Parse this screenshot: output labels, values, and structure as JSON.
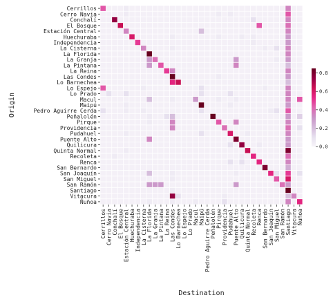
{
  "chart_data": {
    "type": "heatmap",
    "xlabel": "Destination",
    "ylabel": "Origin",
    "categories": [
      "Cerrillos",
      "Cerro Navia",
      "Conchalí",
      "El Bosque",
      "Estación Central",
      "Huechuraba",
      "Independencia",
      "La Cisterna",
      "La Florida",
      "La Granja",
      "La Pintana",
      "La Reina",
      "Las Condes",
      "Lo Barnechea",
      "Lo Espejo",
      "Lo Prado",
      "Macul",
      "Maipú",
      "Pedro Aguirre Cerda",
      "Peñalolén",
      "Pirque",
      "Providencia",
      "Pudahuel",
      "Puente Alto",
      "Quilicura",
      "Quinta Normal",
      "Recoleta",
      "Renca",
      "San Bernardo",
      "San Joaquín",
      "San Miguel",
      "San Ramón",
      "Santiago",
      "Vitacura",
      "Ñuñoa"
    ],
    "colorbar": {
      "ticks": [
        0.0,
        0.2,
        0.4,
        0.6,
        0.8
      ],
      "tick_labels": [
        "0.0",
        "0.2",
        "0.4",
        "0.6",
        "0.8"
      ],
      "range": [
        0,
        0.85
      ]
    },
    "colors": {
      "low": "#f7f4f9",
      "mid": "#df65b0",
      "high": "#67001f"
    },
    "matrix": [
      [
        0.45,
        0.02,
        0.02,
        0.02,
        0.05,
        0.02,
        0.02,
        0.02,
        0.02,
        0.02,
        0.02,
        0.02,
        0.02,
        0.02,
        0.02,
        0.02,
        0.02,
        0.02,
        0.02,
        0.02,
        0.02,
        0.02,
        0.02,
        0.02,
        0.02,
        0.02,
        0.02,
        0.02,
        0.02,
        0.02,
        0.02,
        0.02,
        0.35,
        0.02,
        0.02
      ],
      [
        0.02,
        0.02,
        0.02,
        0.02,
        0.05,
        0.02,
        0.02,
        0.02,
        0.02,
        0.02,
        0.02,
        0.02,
        0.02,
        0.02,
        0.02,
        0.02,
        0.02,
        0.02,
        0.02,
        0.02,
        0.05,
        0.02,
        0.05,
        0.02,
        0.02,
        0.02,
        0.02,
        0.02,
        0.02,
        0.02,
        0.02,
        0.02,
        0.45,
        0.02,
        0.02
      ],
      [
        0.02,
        0.02,
        0.75,
        0.02,
        0.02,
        0.02,
        0.02,
        0.02,
        0.02,
        0.02,
        0.02,
        0.02,
        0.02,
        0.02,
        0.02,
        0.02,
        0.02,
        0.02,
        0.02,
        0.02,
        0.02,
        0.02,
        0.02,
        0.02,
        0.02,
        0.02,
        0.1,
        0.02,
        0.02,
        0.02,
        0.02,
        0.02,
        0.35,
        0.02,
        0.02
      ],
      [
        0.02,
        0.02,
        0.02,
        0.65,
        0.02,
        0.02,
        0.02,
        0.02,
        0.02,
        0.02,
        0.02,
        0.02,
        0.02,
        0.02,
        0.02,
        0.02,
        0.02,
        0.02,
        0.02,
        0.02,
        0.02,
        0.02,
        0.02,
        0.02,
        0.02,
        0.02,
        0.02,
        0.45,
        0.02,
        0.02,
        0.02,
        0.02,
        0.4,
        0.02,
        0.02
      ],
      [
        0.02,
        0.02,
        0.02,
        0.02,
        0.35,
        0.02,
        0.02,
        0.02,
        0.02,
        0.02,
        0.02,
        0.02,
        0.02,
        0.02,
        0.02,
        0.02,
        0.02,
        0.2,
        0.02,
        0.02,
        0.02,
        0.02,
        0.02,
        0.02,
        0.02,
        0.02,
        0.02,
        0.02,
        0.02,
        0.02,
        0.02,
        0.02,
        0.35,
        0.02,
        0.02
      ],
      [
        0.02,
        0.02,
        0.02,
        0.02,
        0.02,
        0.6,
        0.02,
        0.02,
        0.02,
        0.02,
        0.02,
        0.02,
        0.05,
        0.02,
        0.02,
        0.02,
        0.02,
        0.02,
        0.02,
        0.02,
        0.05,
        0.02,
        0.02,
        0.02,
        0.05,
        0.02,
        0.05,
        0.02,
        0.02,
        0.02,
        0.02,
        0.02,
        0.3,
        0.02,
        0.02
      ],
      [
        0.02,
        0.02,
        0.02,
        0.02,
        0.02,
        0.02,
        0.5,
        0.02,
        0.02,
        0.02,
        0.02,
        0.02,
        0.02,
        0.02,
        0.02,
        0.02,
        0.02,
        0.02,
        0.02,
        0.02,
        0.02,
        0.02,
        0.02,
        0.02,
        0.02,
        0.02,
        0.05,
        0.02,
        0.02,
        0.02,
        0.02,
        0.02,
        0.3,
        0.02,
        0.02
      ],
      [
        0.02,
        0.02,
        0.02,
        0.02,
        0.02,
        0.02,
        0.02,
        0.35,
        0.02,
        0.02,
        0.02,
        0.02,
        0.05,
        0.02,
        0.02,
        0.02,
        0.02,
        0.02,
        0.02,
        0.02,
        0.02,
        0.02,
        0.02,
        0.02,
        0.02,
        0.02,
        0.02,
        0.02,
        0.05,
        0.02,
        0.1,
        0.02,
        0.35,
        0.02,
        0.02
      ],
      [
        0.02,
        0.02,
        0.02,
        0.02,
        0.02,
        0.02,
        0.02,
        0.02,
        0.85,
        0.02,
        0.02,
        0.02,
        0.02,
        0.02,
        0.02,
        0.02,
        0.02,
        0.02,
        0.02,
        0.02,
        0.02,
        0.02,
        0.02,
        0.02,
        0.02,
        0.02,
        0.02,
        0.02,
        0.02,
        0.02,
        0.02,
        0.02,
        0.35,
        0.02,
        0.02
      ],
      [
        0.02,
        0.02,
        0.02,
        0.02,
        0.02,
        0.02,
        0.02,
        0.02,
        0.3,
        0.4,
        0.02,
        0.02,
        0.02,
        0.02,
        0.02,
        0.02,
        0.02,
        0.02,
        0.02,
        0.02,
        0.02,
        0.02,
        0.02,
        0.3,
        0.02,
        0.02,
        0.02,
        0.02,
        0.02,
        0.02,
        0.05,
        0.02,
        0.3,
        0.02,
        0.02
      ],
      [
        0.02,
        0.02,
        0.02,
        0.02,
        0.02,
        0.02,
        0.02,
        0.02,
        0.3,
        0.02,
        0.45,
        0.02,
        0.02,
        0.02,
        0.02,
        0.02,
        0.02,
        0.02,
        0.02,
        0.02,
        0.02,
        0.02,
        0.02,
        0.35,
        0.02,
        0.02,
        0.02,
        0.02,
        0.02,
        0.02,
        0.02,
        0.02,
        0.2,
        0.02,
        0.02
      ],
      [
        0.02,
        0.02,
        0.02,
        0.02,
        0.02,
        0.02,
        0.02,
        0.02,
        0.02,
        0.02,
        0.02,
        0.5,
        0.35,
        0.02,
        0.02,
        0.02,
        0.02,
        0.02,
        0.02,
        0.02,
        0.02,
        0.02,
        0.02,
        0.02,
        0.02,
        0.02,
        0.02,
        0.02,
        0.02,
        0.02,
        0.02,
        0.02,
        0.35,
        0.02,
        0.02
      ],
      [
        0.02,
        0.02,
        0.02,
        0.02,
        0.02,
        0.02,
        0.02,
        0.02,
        0.02,
        0.02,
        0.02,
        0.02,
        0.85,
        0.02,
        0.02,
        0.02,
        0.02,
        0.02,
        0.02,
        0.02,
        0.05,
        0.02,
        0.02,
        0.02,
        0.02,
        0.02,
        0.02,
        0.02,
        0.02,
        0.02,
        0.02,
        0.02,
        0.3,
        0.02,
        0.02
      ],
      [
        0.02,
        0.02,
        0.02,
        0.02,
        0.02,
        0.02,
        0.02,
        0.02,
        0.02,
        0.02,
        0.02,
        0.02,
        0.55,
        0.65,
        0.02,
        0.02,
        0.02,
        0.02,
        0.02,
        0.02,
        0.02,
        0.02,
        0.02,
        0.02,
        0.02,
        0.02,
        0.02,
        0.02,
        0.02,
        0.02,
        0.02,
        0.02,
        0.2,
        0.02,
        0.02
      ],
      [
        0.45,
        0.02,
        0.02,
        0.02,
        0.02,
        0.02,
        0.02,
        0.05,
        0.02,
        0.02,
        0.02,
        0.02,
        0.02,
        0.02,
        0.02,
        0.02,
        0.02,
        0.1,
        0.02,
        0.02,
        0.02,
        0.02,
        0.02,
        0.02,
        0.02,
        0.02,
        0.02,
        0.02,
        0.05,
        0.02,
        0.02,
        0.02,
        0.35,
        0.02,
        0.02
      ],
      [
        0.02,
        0.1,
        0.02,
        0.02,
        0.1,
        0.02,
        0.02,
        0.02,
        0.02,
        0.02,
        0.02,
        0.02,
        0.02,
        0.02,
        0.02,
        0.02,
        0.02,
        0.1,
        0.02,
        0.02,
        0.02,
        0.02,
        0.1,
        0.02,
        0.02,
        0.02,
        0.02,
        0.02,
        0.02,
        0.02,
        0.02,
        0.02,
        0.35,
        0.02,
        0.02
      ],
      [
        0.02,
        0.02,
        0.02,
        0.02,
        0.02,
        0.02,
        0.02,
        0.02,
        0.2,
        0.02,
        0.02,
        0.02,
        0.05,
        0.02,
        0.02,
        0.02,
        0.3,
        0.02,
        0.02,
        0.02,
        0.05,
        0.02,
        0.02,
        0.05,
        0.02,
        0.02,
        0.02,
        0.02,
        0.02,
        0.02,
        0.02,
        0.02,
        0.35,
        0.02,
        0.45
      ],
      [
        0.02,
        0.02,
        0.02,
        0.02,
        0.05,
        0.02,
        0.02,
        0.02,
        0.02,
        0.02,
        0.02,
        0.02,
        0.02,
        0.02,
        0.02,
        0.02,
        0.02,
        0.85,
        0.02,
        0.02,
        0.02,
        0.02,
        0.05,
        0.02,
        0.02,
        0.02,
        0.02,
        0.02,
        0.02,
        0.02,
        0.02,
        0.02,
        0.3,
        0.02,
        0.02
      ],
      [
        0.1,
        0.02,
        0.02,
        0.02,
        0.05,
        0.02,
        0.02,
        0.05,
        0.02,
        0.02,
        0.02,
        0.02,
        0.02,
        0.02,
        0.02,
        0.02,
        0.02,
        0.1,
        0.02,
        0.02,
        0.02,
        0.02,
        0.02,
        0.02,
        0.02,
        0.02,
        0.02,
        0.02,
        0.02,
        0.05,
        0.1,
        0.02,
        0.45,
        0.02,
        0.02
      ],
      [
        0.02,
        0.02,
        0.02,
        0.02,
        0.02,
        0.02,
        0.02,
        0.02,
        0.05,
        0.02,
        0.02,
        0.1,
        0.2,
        0.02,
        0.02,
        0.02,
        0.02,
        0.02,
        0.02,
        0.85,
        0.02,
        0.02,
        0.02,
        0.02,
        0.02,
        0.02,
        0.02,
        0.02,
        0.02,
        0.02,
        0.02,
        0.02,
        0.3,
        0.02,
        0.15
      ],
      [
        0.02,
        0.02,
        0.02,
        0.02,
        0.02,
        0.02,
        0.02,
        0.02,
        0.05,
        0.02,
        0.02,
        0.02,
        0.35,
        0.02,
        0.02,
        0.02,
        0.02,
        0.02,
        0.02,
        0.02,
        0.45,
        0.02,
        0.02,
        0.35,
        0.02,
        0.02,
        0.02,
        0.02,
        0.02,
        0.02,
        0.02,
        0.02,
        0.35,
        0.02,
        0.02
      ],
      [
        0.02,
        0.02,
        0.02,
        0.02,
        0.02,
        0.02,
        0.02,
        0.02,
        0.02,
        0.02,
        0.02,
        0.02,
        0.35,
        0.02,
        0.02,
        0.02,
        0.02,
        0.02,
        0.02,
        0.02,
        0.02,
        0.4,
        0.02,
        0.02,
        0.02,
        0.02,
        0.02,
        0.02,
        0.02,
        0.02,
        0.02,
        0.02,
        0.4,
        0.02,
        0.1
      ],
      [
        0.02,
        0.02,
        0.02,
        0.02,
        0.05,
        0.02,
        0.02,
        0.02,
        0.02,
        0.02,
        0.02,
        0.02,
        0.02,
        0.02,
        0.02,
        0.02,
        0.02,
        0.1,
        0.02,
        0.02,
        0.02,
        0.02,
        0.6,
        0.02,
        0.02,
        0.05,
        0.02,
        0.02,
        0.02,
        0.02,
        0.02,
        0.02,
        0.35,
        0.02,
        0.02
      ],
      [
        0.02,
        0.02,
        0.02,
        0.02,
        0.02,
        0.02,
        0.02,
        0.02,
        0.35,
        0.02,
        0.02,
        0.02,
        0.02,
        0.02,
        0.02,
        0.02,
        0.02,
        0.02,
        0.02,
        0.02,
        0.02,
        0.02,
        0.02,
        0.8,
        0.02,
        0.02,
        0.02,
        0.02,
        0.02,
        0.02,
        0.02,
        0.02,
        0.3,
        0.02,
        0.02
      ],
      [
        0.02,
        0.02,
        0.02,
        0.02,
        0.02,
        0.02,
        0.02,
        0.02,
        0.02,
        0.02,
        0.02,
        0.02,
        0.02,
        0.02,
        0.02,
        0.02,
        0.02,
        0.02,
        0.02,
        0.02,
        0.02,
        0.02,
        0.1,
        0.02,
        0.75,
        0.02,
        0.02,
        0.05,
        0.02,
        0.02,
        0.02,
        0.02,
        0.3,
        0.02,
        0.02
      ],
      [
        0.02,
        0.02,
        0.02,
        0.02,
        0.05,
        0.02,
        0.02,
        0.02,
        0.02,
        0.02,
        0.02,
        0.02,
        0.02,
        0.02,
        0.02,
        0.02,
        0.02,
        0.02,
        0.02,
        0.02,
        0.02,
        0.02,
        0.02,
        0.02,
        0.02,
        0.65,
        0.02,
        0.02,
        0.02,
        0.02,
        0.02,
        0.02,
        0.8,
        0.02,
        0.02
      ],
      [
        0.02,
        0.02,
        0.05,
        0.02,
        0.02,
        0.02,
        0.02,
        0.02,
        0.02,
        0.02,
        0.02,
        0.02,
        0.02,
        0.02,
        0.02,
        0.02,
        0.02,
        0.02,
        0.02,
        0.02,
        0.02,
        0.02,
        0.02,
        0.02,
        0.05,
        0.02,
        0.55,
        0.02,
        0.02,
        0.02,
        0.02,
        0.02,
        0.4,
        0.02,
        0.02
      ],
      [
        0.02,
        0.02,
        0.02,
        0.02,
        0.02,
        0.02,
        0.02,
        0.02,
        0.02,
        0.02,
        0.02,
        0.02,
        0.02,
        0.02,
        0.02,
        0.02,
        0.02,
        0.02,
        0.02,
        0.02,
        0.02,
        0.02,
        0.1,
        0.02,
        0.1,
        0.02,
        0.02,
        0.55,
        0.02,
        0.02,
        0.02,
        0.02,
        0.35,
        0.02,
        0.02
      ],
      [
        0.02,
        0.02,
        0.02,
        0.02,
        0.02,
        0.02,
        0.02,
        0.02,
        0.02,
        0.02,
        0.02,
        0.02,
        0.02,
        0.02,
        0.02,
        0.02,
        0.02,
        0.02,
        0.02,
        0.02,
        0.02,
        0.02,
        0.02,
        0.02,
        0.02,
        0.02,
        0.02,
        0.02,
        0.8,
        0.02,
        0.02,
        0.02,
        0.25,
        0.02,
        0.02
      ],
      [
        0.02,
        0.02,
        0.02,
        0.02,
        0.02,
        0.02,
        0.02,
        0.02,
        0.2,
        0.02,
        0.02,
        0.02,
        0.05,
        0.02,
        0.02,
        0.02,
        0.02,
        0.02,
        0.02,
        0.02,
        0.02,
        0.02,
        0.02,
        0.05,
        0.02,
        0.02,
        0.02,
        0.02,
        0.02,
        0.55,
        0.1,
        0.02,
        0.5,
        0.02,
        0.1
      ],
      [
        0.02,
        0.02,
        0.02,
        0.02,
        0.02,
        0.02,
        0.02,
        0.02,
        0.02,
        0.02,
        0.02,
        0.02,
        0.05,
        0.02,
        0.02,
        0.02,
        0.02,
        0.02,
        0.02,
        0.02,
        0.02,
        0.02,
        0.02,
        0.02,
        0.02,
        0.02,
        0.02,
        0.02,
        0.02,
        0.02,
        0.45,
        0.02,
        0.6,
        0.02,
        0.02
      ],
      [
        0.02,
        0.02,
        0.02,
        0.02,
        0.02,
        0.02,
        0.02,
        0.02,
        0.3,
        0.3,
        0.3,
        0.02,
        0.02,
        0.02,
        0.02,
        0.02,
        0.02,
        0.02,
        0.02,
        0.02,
        0.02,
        0.02,
        0.02,
        0.3,
        0.02,
        0.02,
        0.02,
        0.02,
        0.02,
        0.02,
        0.05,
        0.4,
        0.3,
        0.02,
        0.02
      ],
      [
        0.02,
        0.02,
        0.02,
        0.02,
        0.02,
        0.02,
        0.02,
        0.02,
        0.02,
        0.02,
        0.02,
        0.02,
        0.05,
        0.02,
        0.02,
        0.02,
        0.02,
        0.02,
        0.02,
        0.02,
        0.02,
        0.02,
        0.02,
        0.02,
        0.02,
        0.02,
        0.02,
        0.02,
        0.02,
        0.02,
        0.02,
        0.02,
        0.85,
        0.02,
        0.02
      ],
      [
        0.02,
        0.02,
        0.02,
        0.02,
        0.02,
        0.02,
        0.02,
        0.02,
        0.02,
        0.02,
        0.02,
        0.02,
        0.75,
        0.1,
        0.02,
        0.02,
        0.02,
        0.02,
        0.02,
        0.02,
        0.02,
        0.05,
        0.02,
        0.02,
        0.02,
        0.02,
        0.02,
        0.02,
        0.02,
        0.02,
        0.02,
        0.02,
        0.2,
        0.35,
        0.02
      ],
      [
        0.02,
        0.02,
        0.02,
        0.02,
        0.02,
        0.02,
        0.02,
        0.02,
        0.05,
        0.02,
        0.02,
        0.02,
        0.05,
        0.02,
        0.02,
        0.02,
        0.05,
        0.02,
        0.02,
        0.02,
        0.02,
        0.1,
        0.02,
        0.02,
        0.02,
        0.02,
        0.02,
        0.02,
        0.02,
        0.02,
        0.02,
        0.02,
        0.35,
        0.02,
        0.55
      ]
    ]
  }
}
